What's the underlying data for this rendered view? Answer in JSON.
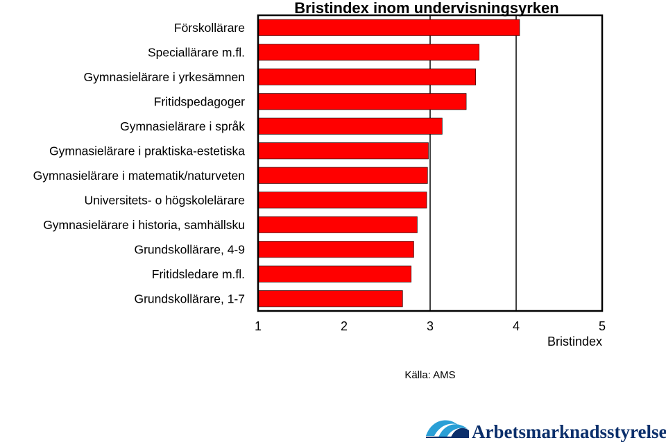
{
  "chart_data": {
    "type": "bar",
    "orientation": "horizontal",
    "title": "Bristindex inom undervisningsyrken",
    "xlabel": "Bristindex",
    "ylabel": "",
    "xlim": [
      1,
      5
    ],
    "xticks": [
      "1",
      "2",
      "3",
      "4",
      "5"
    ],
    "gridlines_at": [
      3,
      4
    ],
    "bar_color": "#ff0000",
    "categories": [
      "Förskollärare",
      "Speciallärare m.fl.",
      "Gymnasielärare i yrkesämnen",
      "Fritidspedagoger",
      "Gymnasielärare i språk",
      "Gymnasielärare i praktiska-estetiska",
      "Gymnasielärare i matematik/naturveten",
      "Universitets- o högskolelärare",
      "Gymnasielärare i historia, samhällsku",
      "Grundskollärare, 4-9",
      "Fritidsledare m.fl.",
      "Grundskollärare, 1-7"
    ],
    "values": [
      4.04,
      3.57,
      3.53,
      3.42,
      3.14,
      2.98,
      2.97,
      2.96,
      2.85,
      2.81,
      2.78,
      2.68
    ]
  },
  "source": "Källa: AMS",
  "logo": {
    "text": "Arbetsmarknadsstyrelsen",
    "color": "#0b2f6b",
    "accent": "#2a9fd6"
  }
}
